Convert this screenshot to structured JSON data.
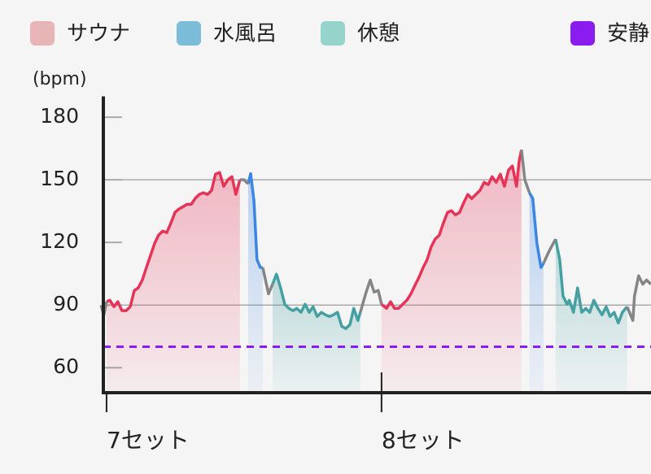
{
  "chart_data": {
    "type": "line",
    "y_unit_label": "(bpm)",
    "ylim": [
      48,
      190
    ],
    "yticks": [
      60,
      90,
      120,
      150,
      180
    ],
    "gridlines": [
      90,
      150
    ],
    "xlim": [
      -2,
      198
    ],
    "xticks": [
      {
        "value": 0,
        "label": "7セット"
      },
      {
        "value": 100,
        "label": "8セット"
      }
    ],
    "legend": "top",
    "series": [
      {
        "name": "サウナ",
        "color": "#e63458",
        "legend_color": "#e8b5b6",
        "fill": true,
        "x": [
          0,
          1.2,
          2.7,
          4.1,
          5.6,
          7.1,
          8.6,
          10.1,
          11.5,
          13,
          14.5,
          16,
          17.5,
          18.9,
          20.4,
          21.9,
          23.4,
          24.9,
          26.3,
          27.8,
          29.3,
          30.8,
          32.2,
          33.7,
          35.2,
          36.7,
          38.2,
          39.6,
          41.1,
          42.6,
          44.1,
          45.6,
          47,
          48.5,
          75,
          100,
          101.8,
          103.3,
          104.7,
          106.2,
          107.7,
          109.2,
          110.7,
          112.1,
          113.6,
          115.1,
          116.6,
          118,
          119.5,
          121,
          122.5,
          124,
          125.4,
          126.9,
          128.4,
          129.9,
          131.4,
          132.8,
          134.3,
          135.8,
          137.3,
          138.8,
          140.2,
          141.7,
          143.2,
          144.7,
          146.2,
          147.6,
          149.1,
          150,
          150.9
        ],
        "values": [
          91.6,
          92.3,
          89.2,
          91.6,
          87.3,
          87.3,
          89.2,
          97,
          98.2,
          102,
          108,
          113.8,
          119.6,
          123.5,
          125.4,
          124.7,
          129.3,
          134.4,
          136,
          137.1,
          138.3,
          138.3,
          141,
          143,
          143.8,
          143,
          144.9,
          152.7,
          153.5,
          146.9,
          150,
          151.5,
          143,
          150,
          null,
          90.4,
          88.4,
          91.6,
          88.4,
          88.4,
          90.4,
          92.3,
          95.4,
          99.3,
          103.2,
          107.9,
          111.8,
          117.7,
          121.6,
          123.5,
          129.3,
          134.4,
          135.2,
          133.2,
          134.4,
          139.1,
          143,
          141,
          143,
          144.9,
          148.8,
          147.7,
          151.5,
          148.8,
          152.7,
          146.9,
          154.7,
          156.6,
          146.9,
          158.6,
          164.4
        ]
      },
      {
        "name": "水風呂",
        "color": "#3b86e3",
        "legend_color": "#7bbcd8",
        "fill": true,
        "x": [
          51.5,
          52.4,
          53.6,
          54.7,
          55.9,
          56.8,
          100,
          153.8,
          155,
          156.5,
          158,
          158.9
        ],
        "values": [
          148,
          153,
          140,
          111.8,
          108,
          108,
          null,
          143.8,
          141,
          119.6,
          108,
          110
        ]
      },
      {
        "name": "休憩",
        "color": "#45a0a2",
        "legend_color": "#96d4cb",
        "fill": true,
        "x": [
          60.4,
          61.8,
          63.3,
          64.8,
          66.3,
          67.8,
          69.2,
          70.7,
          72.2,
          73.7,
          75.1,
          76.6,
          78.1,
          79.6,
          81.1,
          82.5,
          84,
          85.5,
          87,
          88.5,
          89.9,
          91.4,
          92.3,
          130,
          163.3,
          164.8,
          166,
          167.5,
          168.3,
          169.8,
          171.3,
          172.8,
          174.3,
          175.7,
          177.2,
          178.7,
          180.2,
          181.7,
          183.1,
          184.6,
          186.1,
          187.6,
          189.3
        ],
        "values": [
          100.1,
          104.8,
          98.2,
          90.4,
          88.4,
          87.3,
          88.4,
          86.5,
          90.4,
          86.5,
          89.2,
          84.5,
          86.5,
          85.3,
          84.5,
          85.3,
          86.5,
          79.9,
          78.7,
          80.6,
          88.4,
          82.6,
          86.5,
          null,
          121.6,
          111.8,
          94.3,
          90.4,
          92.3,
          86.5,
          98.2,
          86.5,
          88.4,
          86.5,
          92.3,
          88.4,
          85.3,
          89.2,
          84.5,
          86.5,
          81.4,
          86.5,
          89.2
        ]
      },
      {
        "color": "#858585",
        "fill": false,
        "x": [
          -2,
          -1,
          0,
          20,
          48.5,
          50,
          51.5,
          54,
          56.8,
          58.9,
          60.4,
          75,
          92.3,
          94.4,
          95.9,
          97.3,
          98.8,
          100,
          125,
          150.9,
          152.1,
          153.8,
          156,
          158.9,
          160.9,
          163.3,
          175,
          189.3,
          191.4,
          192,
          193.5,
          195,
          196.4,
          197.9
        ],
        "values": [
          90,
          85,
          91.6,
          null,
          150,
          150,
          148,
          null,
          108,
          95.4,
          100.1,
          null,
          86.5,
          96.2,
          102,
          96.2,
          97,
          90.4,
          null,
          164.4,
          150,
          143.8,
          null,
          110,
          115.7,
          121.6,
          null,
          89.2,
          82.6,
          94.3,
          104,
          100,
          102,
          100
        ]
      }
    ],
    "resting": {
      "name": "安静",
      "value": 70,
      "color": "#8b1cf0"
    }
  }
}
